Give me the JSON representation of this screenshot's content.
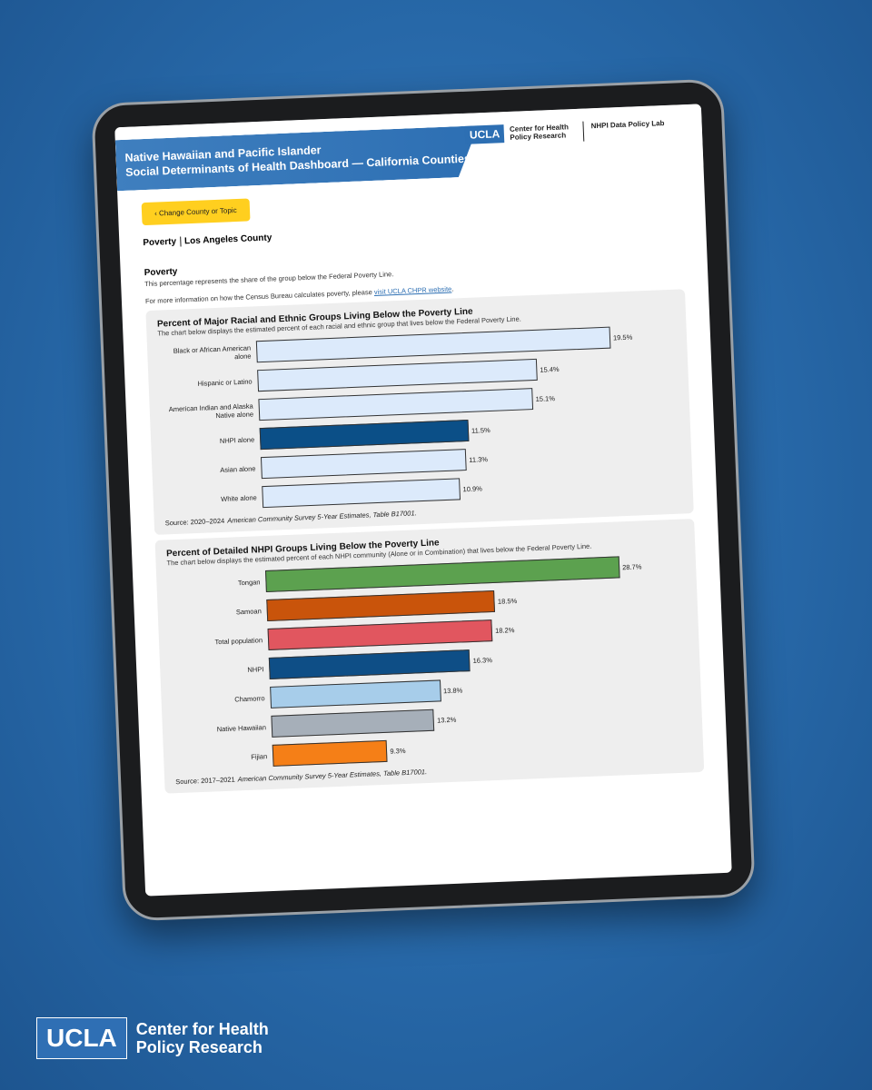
{
  "background_logo": {
    "mark": "UCLA",
    "name_line1": "Center for Health",
    "name_line2": "Policy Research"
  },
  "header": {
    "title_line1": "Native Hawaiian and Pacific Islander",
    "title_line2": "Social Determinants of Health Dashboard — California Counties",
    "logo_mark": "UCLA",
    "logo_name_line1": "Center for Health",
    "logo_name_line2": "Policy Research",
    "partner": "NHPI Data Policy Lab"
  },
  "nav": {
    "back_button": "‹ Change County or Topic"
  },
  "breadcrumb": {
    "topic": "Poverty",
    "county": "Los Angeles County"
  },
  "section": {
    "title": "Poverty",
    "description": "This percentage represents the share of the group below the Federal Poverty Line.",
    "more_info": "For more information on how the Census Bureau calculates poverty, please",
    "link": "visit UCLA CHPR website",
    "more_info_end": "."
  },
  "chart_data": [
    {
      "type": "bar",
      "orientation": "horizontal",
      "title": "Percent of Major Racial and Ethnic Groups Living Below the Poverty Line",
      "subtitle": "The chart below displays the estimated percent of each racial and ethnic group that lives below the Federal Poverty Line.",
      "categories": [
        "Black or African American alone",
        "Hispanic or Latino",
        "American Indian and Alaska Native alone",
        "NHPI alone",
        "Asian alone",
        "White alone"
      ],
      "values": [
        19.5,
        15.4,
        15.1,
        11.5,
        11.3,
        10.9
      ],
      "value_labels": [
        "19.5%",
        "15.4%",
        "15.1%",
        "11.5%",
        "11.3%",
        "10.9%"
      ],
      "colors": [
        "#dceafb",
        "#dceafb",
        "#dceafb",
        "#0b4f87",
        "#dceafb",
        "#dceafb"
      ],
      "source_prefix": "Source: 2020–2024",
      "source_detail": "American Community Survey 5-Year Estimates, Table B17001."
    },
    {
      "type": "bar",
      "orientation": "horizontal",
      "title": "Percent of Detailed NHPI Groups Living Below the Poverty Line",
      "subtitle": "The chart below displays the estimated percent of each NHPI community (Alone or in Combination) that lives below the Federal Poverty Line.",
      "categories": [
        "Tongan",
        "Samoan",
        "Total population",
        "NHPI",
        "Chamorro",
        "Native Hawaiian",
        "Fijian"
      ],
      "values": [
        28.7,
        18.5,
        18.2,
        16.3,
        13.8,
        13.2,
        9.3
      ],
      "value_labels": [
        "28.7%",
        "18.5%",
        "18.2%",
        "16.3%",
        "13.8%",
        "13.2%",
        "9.3%"
      ],
      "colors": [
        "#5ca14f",
        "#c9540b",
        "#e1565f",
        "#0e4e86",
        "#a7cdea",
        "#a6afb9",
        "#f57f17"
      ],
      "source_prefix": "Source: 2017–2021",
      "source_detail": "American Community Survey 5-Year Estimates, Table B17001."
    }
  ]
}
